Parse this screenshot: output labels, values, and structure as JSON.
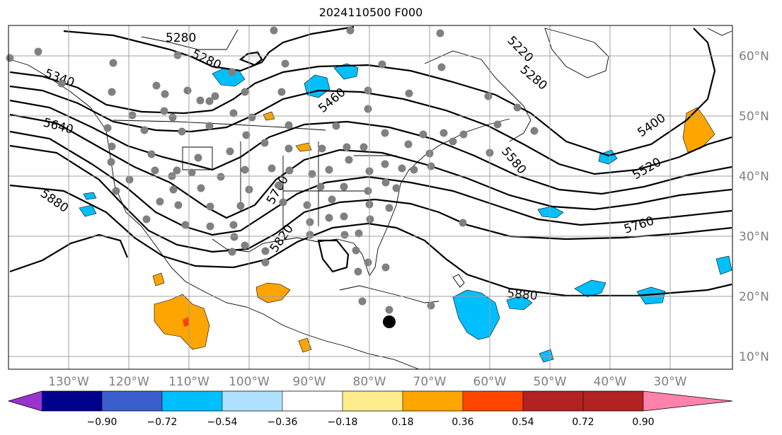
{
  "title": "2024110500 F000",
  "map": {
    "lat_labels": [
      "60°N",
      "50°N",
      "40°N",
      "30°N",
      "20°N",
      "10°N"
    ],
    "lon_labels": [
      "130°W",
      "120°W",
      "110°W",
      "100°W",
      "90°W",
      "80°W",
      "70°W",
      "60°W",
      "50°W",
      "40°W",
      "30°W"
    ],
    "contour_labels": [
      "5280",
      "5280",
      "5220",
      "5280",
      "5340",
      "5460",
      "5640",
      "5880",
      "5700",
      "5820",
      "5580",
      "5400",
      "5520",
      "5760",
      "5880"
    ],
    "marker_color": "#808080",
    "storm_marker": "black-dot"
  },
  "colorbar": {
    "ticks": [
      "−0.90",
      "−0.72",
      "−0.54",
      "−0.36",
      "−0.18",
      "0.18",
      "0.36",
      "0.54",
      "0.72",
      "0.90"
    ],
    "colors": [
      "#9a32cd",
      "#00008b",
      "#3a5fcd",
      "#00bfff",
      "#b0e2ff",
      "#ffffff",
      "#ffec8b",
      "#ffa500",
      "#ff4500",
      "#b22222",
      "#ff82ab"
    ]
  }
}
